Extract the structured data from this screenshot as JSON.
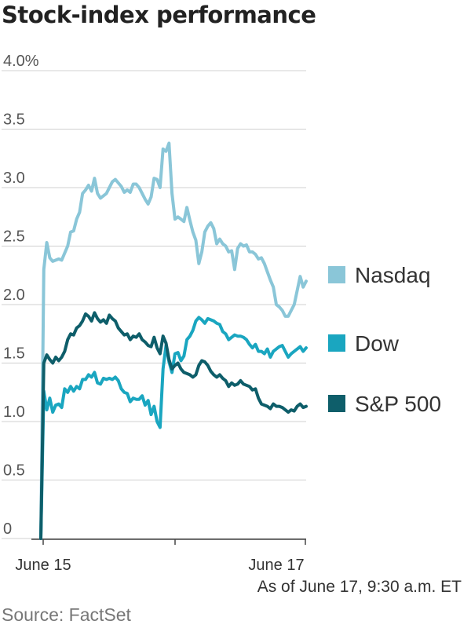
{
  "chart_data": {
    "type": "line",
    "title": "Stock-index performance",
    "y_ticks": [
      "4.0%",
      "3.5",
      "3.0",
      "2.5",
      "2.0",
      "1.5",
      "1.0",
      "0.5",
      "0"
    ],
    "ylim": [
      0,
      4.0
    ],
    "x_tick_labels": [
      "June 15",
      "June 17"
    ],
    "grid": true,
    "legend_position": "right",
    "x": [
      0,
      1,
      2,
      3,
      4,
      5,
      6,
      7,
      8,
      9,
      10,
      11,
      12,
      13,
      14,
      15,
      16,
      17,
      18,
      19,
      20,
      21,
      22,
      23,
      24,
      25,
      26,
      27,
      28,
      29,
      30,
      31,
      32,
      33,
      34,
      35,
      36,
      37,
      38,
      39,
      40,
      41,
      42,
      43,
      44,
      45,
      46,
      47,
      48,
      49,
      50,
      51,
      52,
      53,
      54,
      55,
      56,
      57,
      58,
      59,
      60,
      61,
      62,
      63,
      64,
      65,
      66,
      67,
      68,
      69,
      70,
      71,
      72,
      73,
      74,
      75,
      76,
      77,
      78,
      79,
      80,
      81,
      82,
      83,
      84,
      85,
      86,
      87,
      88,
      89
    ],
    "series": [
      {
        "name": "Nasdaq",
        "color": "#8ac6d8",
        "values": [
          0,
          2.3,
          2.53,
          2.4,
          2.37,
          2.38,
          2.39,
          2.38,
          2.44,
          2.5,
          2.62,
          2.63,
          2.73,
          2.79,
          2.95,
          2.98,
          3.02,
          2.97,
          3.08,
          2.95,
          2.91,
          2.93,
          2.95,
          3.0,
          3.05,
          3.07,
          3.04,
          3.01,
          2.96,
          2.98,
          2.96,
          3.03,
          3.03,
          3.0,
          2.95,
          2.9,
          2.86,
          2.92,
          3.08,
          3.07,
          3.0,
          3.33,
          3.31,
          3.38,
          2.95,
          2.73,
          2.75,
          2.73,
          2.71,
          2.83,
          2.72,
          2.62,
          2.55,
          2.35,
          2.45,
          2.62,
          2.67,
          2.7,
          2.65,
          2.52,
          2.56,
          2.52,
          2.5,
          2.45,
          2.46,
          2.3,
          2.48,
          2.52,
          2.5,
          2.51,
          2.45,
          2.45,
          2.43,
          2.39,
          2.4,
          2.35,
          2.28,
          2.21,
          2.15,
          2.0,
          1.98,
          1.95,
          1.9,
          1.9,
          1.95,
          2.0,
          2.12,
          2.24,
          2.15,
          2.2
        ]
      },
      {
        "name": "Dow",
        "color": "#1aa6c0",
        "values": [
          0,
          1.26,
          1.1,
          1.2,
          1.08,
          1.14,
          1.15,
          1.12,
          1.28,
          1.25,
          1.3,
          1.26,
          1.3,
          1.28,
          1.36,
          1.36,
          1.4,
          1.38,
          1.42,
          1.33,
          1.32,
          1.37,
          1.36,
          1.37,
          1.36,
          1.38,
          1.35,
          1.28,
          1.25,
          1.24,
          1.17,
          1.2,
          1.19,
          1.19,
          1.22,
          1.14,
          1.18,
          1.06,
          1.13,
          1.0,
          0.95,
          1.45,
          1.65,
          1.51,
          1.42,
          1.58,
          1.59,
          1.52,
          1.56,
          1.7,
          1.73,
          1.78,
          1.86,
          1.89,
          1.87,
          1.84,
          1.88,
          1.87,
          1.86,
          1.84,
          1.83,
          1.77,
          1.75,
          1.7,
          1.72,
          1.74,
          1.73,
          1.73,
          1.72,
          1.7,
          1.66,
          1.63,
          1.66,
          1.6,
          1.6,
          1.58,
          1.62,
          1.55,
          1.6,
          1.62,
          1.64,
          1.65,
          1.6,
          1.55,
          1.58,
          1.6,
          1.62,
          1.64,
          1.6,
          1.63
        ]
      },
      {
        "name": "S&P 500",
        "color": "#0e5e6a",
        "values": [
          0,
          1.5,
          1.57,
          1.53,
          1.5,
          1.55,
          1.52,
          1.55,
          1.6,
          1.7,
          1.75,
          1.74,
          1.8,
          1.82,
          1.86,
          1.92,
          1.9,
          1.86,
          1.93,
          1.88,
          1.85,
          1.87,
          1.84,
          1.91,
          1.88,
          1.86,
          1.8,
          1.77,
          1.74,
          1.75,
          1.7,
          1.73,
          1.72,
          1.75,
          1.7,
          1.68,
          1.65,
          1.64,
          1.72,
          1.63,
          1.58,
          1.73,
          1.67,
          1.53,
          1.45,
          1.48,
          1.5,
          1.45,
          1.42,
          1.41,
          1.4,
          1.38,
          1.4,
          1.48,
          1.52,
          1.51,
          1.48,
          1.43,
          1.4,
          1.38,
          1.4,
          1.37,
          1.35,
          1.3,
          1.33,
          1.31,
          1.32,
          1.35,
          1.32,
          1.31,
          1.3,
          1.27,
          1.28,
          1.2,
          1.15,
          1.14,
          1.13,
          1.11,
          1.15,
          1.13,
          1.13,
          1.12,
          1.1,
          1.08,
          1.1,
          1.09,
          1.13,
          1.15,
          1.12,
          1.13
        ]
      }
    ]
  },
  "notes": {
    "as_of": "As of June 17, 9:30 a.m. ET",
    "source": "Source: FactSet"
  }
}
